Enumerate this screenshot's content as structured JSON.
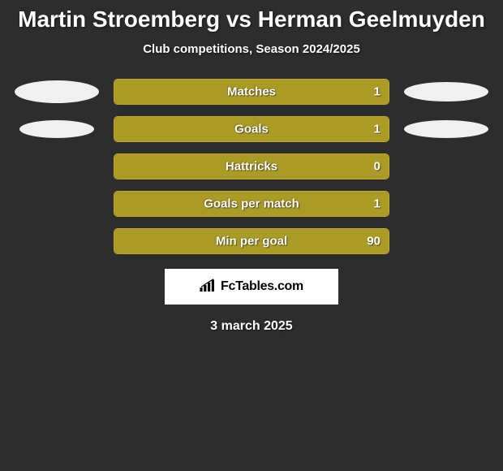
{
  "title": "Martin Stroemberg vs Herman Geelmuyden",
  "subtitle": "Club competitions, Season 2024/2025",
  "date": "3 march 2025",
  "logo_text": "FcTables.com",
  "colors": {
    "background": "#2d2d2d",
    "bar_fill": "#aa9a26",
    "bar_border": "#bfa82a",
    "ellipse": "#f0f0f0",
    "text": "#ffffff"
  },
  "stats": [
    {
      "label": "Matches",
      "value": "1",
      "fill_pct": 100,
      "ell_left": true,
      "ell_right": true,
      "er_cls": "ell-right"
    },
    {
      "label": "Goals",
      "value": "1",
      "fill_pct": 100,
      "ell_left": true,
      "ell_right": true,
      "el_cls": "ell-l2",
      "er_cls": "ell-r2"
    },
    {
      "label": "Hattricks",
      "value": "0",
      "fill_pct": 100,
      "ell_left": false,
      "ell_right": false
    },
    {
      "label": "Goals per match",
      "value": "1",
      "fill_pct": 100,
      "ell_left": false,
      "ell_right": false
    },
    {
      "label": "Min per goal",
      "value": "90",
      "fill_pct": 100,
      "ell_left": false,
      "ell_right": false
    }
  ]
}
